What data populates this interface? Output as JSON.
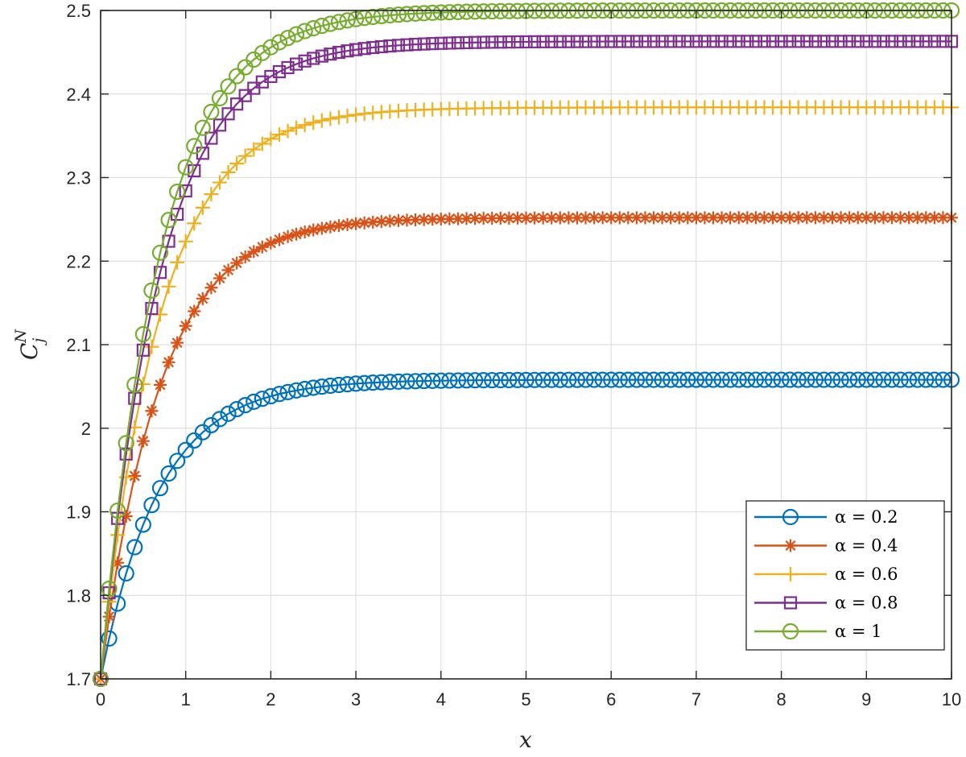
{
  "chart_data": {
    "type": "line",
    "title": "",
    "xlabel": "x",
    "ylabel_main": "C",
    "ylabel_sub": "j",
    "ylabel_sup": "N",
    "xlim": [
      0,
      10
    ],
    "ylim": [
      1.7,
      2.5
    ],
    "grid": true,
    "legend_position": "bottom-right",
    "x_ticks": [
      {
        "value": 0,
        "label": "0"
      },
      {
        "value": 1,
        "label": "1"
      },
      {
        "value": 2,
        "label": "2"
      },
      {
        "value": 3,
        "label": "3"
      },
      {
        "value": 4,
        "label": "4"
      },
      {
        "value": 5,
        "label": "5"
      },
      {
        "value": 6,
        "label": "6"
      },
      {
        "value": 7,
        "label": "7"
      },
      {
        "value": 8,
        "label": "8"
      },
      {
        "value": 9,
        "label": "9"
      },
      {
        "value": 10,
        "label": "10"
      }
    ],
    "y_ticks": [
      {
        "value": 1.7,
        "label": "1.7"
      },
      {
        "value": 1.8,
        "label": "1.8"
      },
      {
        "value": 1.9,
        "label": "1.9"
      },
      {
        "value": 2.0,
        "label": "2"
      },
      {
        "value": 2.1,
        "label": "2.1"
      },
      {
        "value": 2.2,
        "label": "2.2"
      },
      {
        "value": 2.3,
        "label": "2.3"
      },
      {
        "value": 2.4,
        "label": "2.4"
      },
      {
        "value": 2.5,
        "label": "2.5"
      }
    ],
    "x_start": 0,
    "x_step": 0.1,
    "x_end": 10,
    "series": [
      {
        "name": "α = 0.2",
        "legend_label": "α = 0.2",
        "marker": "circle",
        "color": "#0072bd",
        "model": {
          "y0": 1.7,
          "y_inf": 2.058,
          "rate": 1.45
        }
      },
      {
        "name": "α = 0.4",
        "legend_label": "α = 0.4",
        "marker": "asterisk",
        "color": "#d95319",
        "model": {
          "y0": 1.7,
          "y_inf": 2.252,
          "rate": 1.45
        }
      },
      {
        "name": "α = 0.6",
        "legend_label": "α = 0.6",
        "marker": "plus",
        "color": "#edb120",
        "model": {
          "y0": 1.7,
          "y_inf": 2.384,
          "rate": 1.45
        }
      },
      {
        "name": "α = 0.8",
        "legend_label": "α = 0.8",
        "marker": "square",
        "color": "#7e2f8e",
        "model": {
          "y0": 1.7,
          "y_inf": 2.463,
          "rate": 1.45
        }
      },
      {
        "name": "α = 1",
        "legend_label": "α = 1",
        "marker": "circle",
        "color": "#77ac30",
        "model": {
          "y0": 1.7,
          "y_inf": 2.5,
          "rate": 1.45
        }
      }
    ]
  }
}
